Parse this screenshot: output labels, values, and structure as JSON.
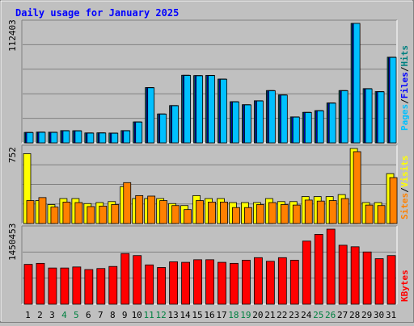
{
  "colors": {
    "background": "#c0c0c0",
    "panel": "#c0c0c0",
    "grid": "#808080",
    "hits": "#008080",
    "files": "#0000ff",
    "pages": "#00c0ff",
    "visits": "#ffff00",
    "sites": "#ff8000",
    "kbytes": "#ff0000",
    "title": "#0000ff",
    "weekday": "#000000",
    "weekend": "#008040"
  },
  "chart_data": [
    {
      "type": "bar",
      "title": "Daily usage for January 2025",
      "panel": "hits-files-pages",
      "ymax_label": "112403",
      "ylim": [
        0,
        112403
      ],
      "series": [
        {
          "name": "Pages",
          "color": "#00c0ff",
          "values": [
            9600,
            9900,
            9800,
            11300,
            11200,
            9100,
            9200,
            9000,
            11300,
            19500,
            51800,
            27000,
            34900,
            63400,
            63100,
            63300,
            59800,
            38500,
            35700,
            39400,
            49000,
            44900,
            24200,
            28500,
            30100,
            37300,
            49000,
            112400,
            50800,
            48000,
            80400
          ]
        },
        {
          "name": "Files",
          "color": "#0000ff",
          "values": [
            9800,
            10100,
            10000,
            11500,
            11400,
            9300,
            9400,
            9200,
            11500,
            19700,
            52000,
            27200,
            35100,
            63600,
            63300,
            63500,
            60000,
            38700,
            35900,
            39600,
            49200,
            45100,
            24400,
            28700,
            30300,
            37500,
            49200,
            112403,
            51000,
            48200,
            80600
          ]
        },
        {
          "name": "Hits",
          "color": "#008080",
          "values": [
            9800,
            10100,
            10000,
            11500,
            11400,
            9300,
            9400,
            9200,
            11500,
            19700,
            52000,
            27200,
            35100,
            63600,
            63300,
            63500,
            60000,
            38700,
            35900,
            39600,
            49200,
            45100,
            24400,
            28700,
            30300,
            37500,
            49200,
            112403,
            51000,
            48200,
            80600
          ]
        }
      ]
    },
    {
      "type": "bar",
      "panel": "visits-sites",
      "ymax_label": "752",
      "ylim": [
        0,
        752
      ],
      "series": [
        {
          "name": "Visits",
          "color": "#ffff00",
          "values": [
            700,
            230,
            190,
            250,
            250,
            200,
            210,
            220,
            370,
            250,
            250,
            250,
            200,
            180,
            280,
            250,
            250,
            210,
            210,
            210,
            250,
            220,
            220,
            270,
            270,
            270,
            290,
            752,
            210,
            210,
            500
          ]
        },
        {
          "name": "Sites",
          "color": "#ff8000",
          "values": [
            230,
            260,
            165,
            215,
            210,
            170,
            175,
            190,
            410,
            280,
            275,
            230,
            180,
            140,
            230,
            215,
            215,
            160,
            160,
            190,
            210,
            190,
            185,
            235,
            225,
            230,
            250,
            720,
            185,
            180,
            460
          ]
        }
      ]
    },
    {
      "type": "bar",
      "panel": "kbytes",
      "ymax_label": "1450453",
      "ylim": [
        0,
        1450453
      ],
      "series": [
        {
          "name": "KBytes",
          "color": "#ff0000",
          "values": [
            770000,
            790000,
            700000,
            700000,
            720000,
            670000,
            690000,
            730000,
            980000,
            940000,
            760000,
            710000,
            820000,
            810000,
            860000,
            860000,
            810000,
            790000,
            850000,
            900000,
            830000,
            900000,
            850000,
            1220000,
            1350000,
            1450453,
            1140000,
            1110000,
            1010000,
            880000,
            940000
          ]
        }
      ]
    }
  ],
  "x_axis": {
    "days": [
      "1",
      "2",
      "3",
      "4",
      "5",
      "6",
      "7",
      "8",
      "9",
      "10",
      "11",
      "12",
      "13",
      "14",
      "15",
      "16",
      "17",
      "18",
      "19",
      "20",
      "21",
      "22",
      "23",
      "24",
      "25",
      "26",
      "27",
      "28",
      "29",
      "30",
      "31"
    ],
    "weekend_days": [
      "4",
      "5",
      "11",
      "12",
      "18",
      "19",
      "25",
      "26"
    ]
  },
  "labels": {
    "pages": "Pages",
    "files": "Files",
    "hits": "Hits",
    "sites": "Sites",
    "visits": "Visits",
    "kbytes": "KBytes",
    "sep": "/"
  }
}
